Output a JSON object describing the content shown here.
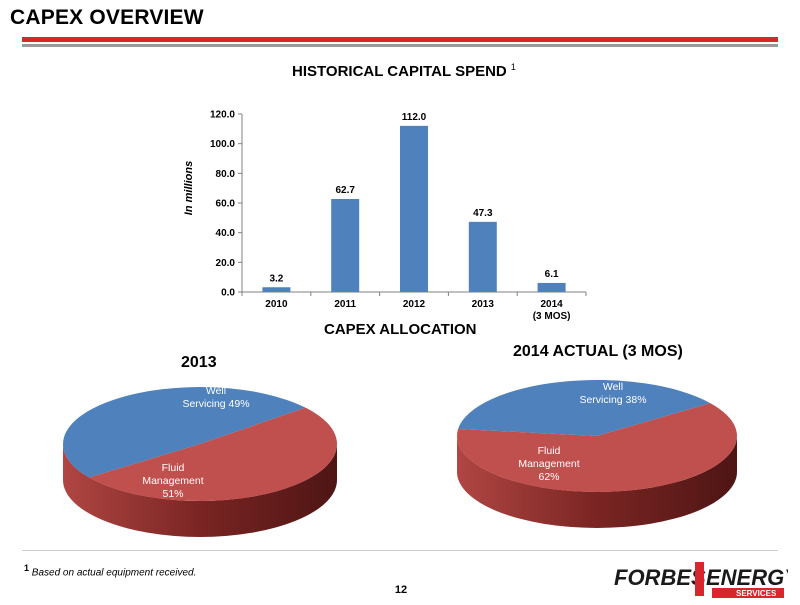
{
  "page": {
    "title": "CAPEX OVERVIEW",
    "bar_section_title": "HISTORICAL CAPITAL SPEND",
    "bar_section_title_sup": "1",
    "alloc_title": "CAPEX ALLOCATION",
    "footnote_num": "1",
    "footnote_text": "Based on actual equipment received.",
    "page_number": "12",
    "logo": {
      "left": "FORBES",
      "right": "ENERGY",
      "sub": "SERVICES",
      "mid_small": "FORBES"
    }
  },
  "colors": {
    "accent_red": "#d7262c",
    "bar_blue": "#4f81bd",
    "pie_blue": "#4f81bd",
    "pie_red": "#c0504d"
  },
  "chart_data": [
    {
      "type": "bar",
      "title": "HISTORICAL CAPITAL SPEND 1",
      "ylabel": "In millions",
      "xlabel": "",
      "categories": [
        "2010",
        "2011",
        "2012",
        "2013",
        "2014"
      ],
      "category_sublabels": [
        "",
        "",
        "",
        "",
        "(3 MOS)"
      ],
      "values": [
        3.2,
        62.7,
        112.0,
        47.3,
        6.1
      ],
      "value_labels": [
        "3.2",
        "62.7",
        "112.0",
        "47.3",
        "6.1"
      ],
      "ylim": [
        0,
        120
      ],
      "yticks": [
        0,
        20,
        40,
        60,
        80,
        100,
        120
      ],
      "ytick_labels": [
        "0.0",
        "20.0",
        "40.0",
        "60.0",
        "80.0",
        "100.0",
        "120.0"
      ],
      "grid": false,
      "legend": "none"
    },
    {
      "type": "pie",
      "title": "2013",
      "labels": [
        "Well Servicing",
        "Fluid Management"
      ],
      "slice_text": [
        [
          "Well",
          "Servicing 49%"
        ],
        [
          "Fluid",
          "Management",
          "51%"
        ]
      ],
      "values": [
        49,
        51
      ],
      "colors": [
        "#4f81bd",
        "#c0504d"
      ]
    },
    {
      "type": "pie",
      "title": "2014 ACTUAL (3 MOS)",
      "labels": [
        "Well Servicing",
        "Fluid Management"
      ],
      "slice_text": [
        [
          "Well",
          "Servicing 38%"
        ],
        [
          "Fluid",
          "Management",
          "62%"
        ]
      ],
      "values": [
        38,
        62
      ],
      "colors": [
        "#4f81bd",
        "#c0504d"
      ]
    }
  ]
}
